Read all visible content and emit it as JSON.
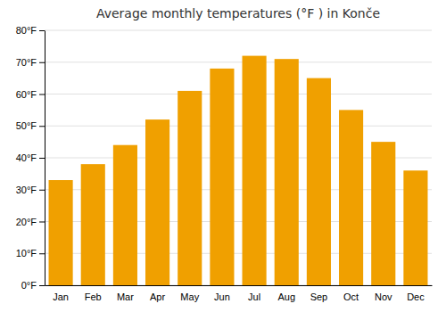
{
  "chart_data": {
    "type": "bar",
    "title": "Average monthly temperatures (°F ) in Konče",
    "categories": [
      "Jan",
      "Feb",
      "Mar",
      "Apr",
      "May",
      "Jun",
      "Jul",
      "Aug",
      "Sep",
      "Oct",
      "Nov",
      "Dec"
    ],
    "values": [
      33,
      38,
      44,
      52,
      61,
      68,
      72,
      71,
      65,
      55,
      45,
      36
    ],
    "color": "#F0A000",
    "ylim": [
      0,
      80
    ],
    "yticks": [
      {
        "value": 0,
        "label": "0°F"
      },
      {
        "value": 10,
        "label": "10°F"
      },
      {
        "value": 20,
        "label": "20°F"
      },
      {
        "value": 30,
        "label": "30°F"
      },
      {
        "value": 40,
        "label": "40°F"
      },
      {
        "value": 50,
        "label": "50°F"
      },
      {
        "value": 60,
        "label": "60°F"
      },
      {
        "value": 70,
        "label": "70°F"
      },
      {
        "value": 80,
        "label": "80°F"
      }
    ],
    "grid": true
  }
}
